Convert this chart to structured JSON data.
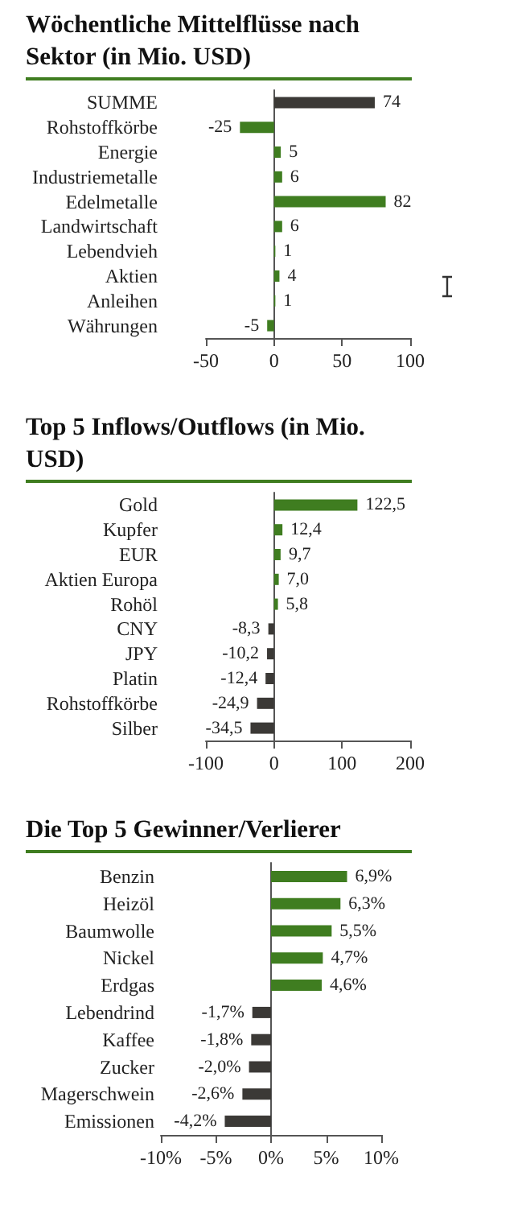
{
  "chart_data": [
    {
      "type": "bar",
      "orientation": "horizontal",
      "title": "Wöchentliche Mittelflüsse nach Sektor (in Mio. USD)",
      "categories": [
        "SUMME",
        "Rohstoffkörbe",
        "Energie",
        "Industriemetalle",
        "Edelmetalle",
        "Landwirtschaft",
        "Lebendvieh",
        "Aktien",
        "Anleihen",
        "Währungen"
      ],
      "values": [
        74,
        -25,
        5,
        6,
        82,
        6,
        1,
        4,
        1,
        -5
      ],
      "colors": [
        "#3b3936",
        "#3f7d20",
        "#3f7d20",
        "#3f7d20",
        "#3f7d20",
        "#3f7d20",
        "#3f7d20",
        "#3f7d20",
        "#3f7d20",
        "#3f7d20"
      ],
      "value_labels": [
        "74",
        "-25",
        "5",
        "6",
        "82",
        "6",
        "1",
        "4",
        "1",
        "-5"
      ],
      "xlim": [
        -50,
        100
      ],
      "xticks": [
        -50,
        0,
        50,
        100
      ]
    },
    {
      "type": "bar",
      "orientation": "horizontal",
      "title": "Top 5 Inflows/Outflows (in Mio. USD)",
      "categories": [
        "Gold",
        "Kupfer",
        "EUR",
        "Aktien Europa",
        "Rohöl",
        "CNY",
        "JPY",
        "Platin",
        "Rohstoffkörbe",
        "Silber"
      ],
      "values": [
        122.5,
        12.4,
        9.7,
        7.0,
        5.8,
        -8.3,
        -10.2,
        -12.4,
        -24.9,
        -34.5
      ],
      "colors": [
        "#3f7d20",
        "#3f7d20",
        "#3f7d20",
        "#3f7d20",
        "#3f7d20",
        "#3b3936",
        "#3b3936",
        "#3b3936",
        "#3b3936",
        "#3b3936"
      ],
      "value_labels": [
        "122,5",
        "12,4",
        "9,7",
        "7,0",
        "5,8",
        "-8,3",
        "-10,2",
        "-12,4",
        "-24,9",
        "-34,5"
      ],
      "xlim": [
        -100,
        200
      ],
      "xticks": [
        -100,
        0,
        100,
        200
      ]
    },
    {
      "type": "bar",
      "orientation": "horizontal",
      "title": "Die Top 5 Gewinner/Verlierer",
      "categories": [
        "Benzin",
        "Heizöl",
        "Baumwolle",
        "Nickel",
        "Erdgas",
        "Lebendrind",
        "Kaffee",
        "Zucker",
        "Magerschwein",
        "Emissionen"
      ],
      "values": [
        6.9,
        6.3,
        5.5,
        4.7,
        4.6,
        -1.7,
        -1.8,
        -2.0,
        -2.6,
        -4.2
      ],
      "colors": [
        "#3f7d20",
        "#3f7d20",
        "#3f7d20",
        "#3f7d20",
        "#3f7d20",
        "#3b3936",
        "#3b3936",
        "#3b3936",
        "#3b3936",
        "#3b3936"
      ],
      "value_labels": [
        "6,9%",
        "6,3%",
        "5,5%",
        "4,7%",
        "4,6%",
        "-1,7%",
        "-1,8%",
        "-2,0%",
        "-2,6%",
        "-4,2%"
      ],
      "xlim": [
        -10,
        10
      ],
      "xticks": [
        {
          "value": -10,
          "label": "-10%"
        },
        {
          "value": -5,
          "label": "-5%"
        },
        {
          "value": 0,
          "label": "0%"
        },
        {
          "value": 5,
          "label": "5%"
        },
        {
          "value": 10,
          "label": "10%"
        }
      ]
    }
  ]
}
